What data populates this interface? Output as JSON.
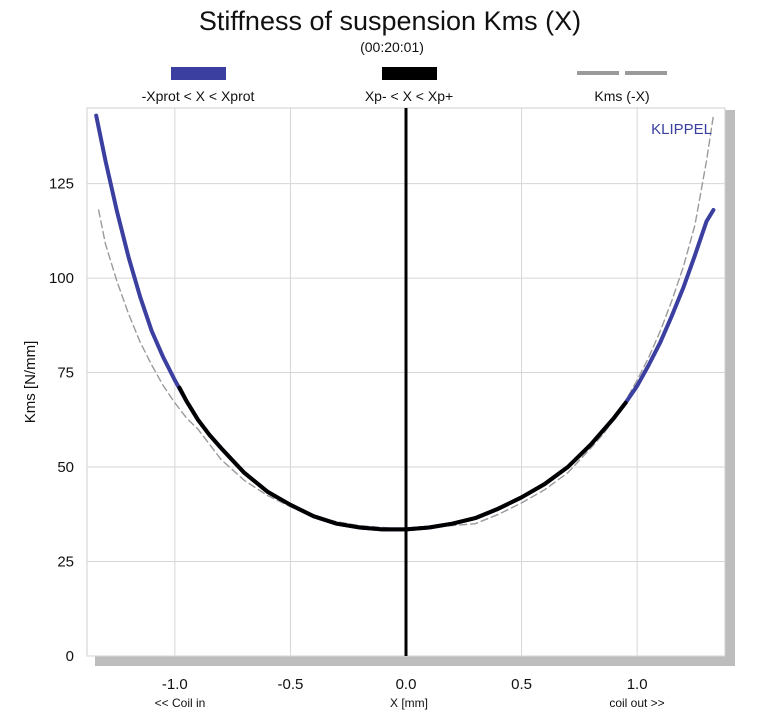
{
  "chart_data": {
    "type": "line",
    "title": "Stiffness of suspension Kms (X)",
    "subtitle": "(00:20:01)",
    "xlabel": "X [mm]",
    "ylabel": "Kms [N/mm]",
    "x_left_note": "<< Coil in",
    "x_right_note": "coil out >>",
    "brand": "KLIPPEL",
    "xlim": [
      -1.38,
      1.38
    ],
    "ylim": [
      0,
      145
    ],
    "xticks": [
      "-1.0",
      "-0.5",
      "0.0",
      "0.5",
      "1.0"
    ],
    "xtick_values": [
      -1.0,
      -0.5,
      0.0,
      0.5,
      1.0
    ],
    "yticks": [
      "0",
      "25",
      "50",
      "75",
      "100",
      "125"
    ],
    "ytick_values": [
      0,
      25,
      50,
      75,
      100,
      125
    ],
    "grid": true,
    "legend_position": "top",
    "vertical_marker_x": 0.0,
    "series": [
      {
        "name": "-Xprot < X < Xprot",
        "color": "#3b3fa0",
        "style": "solid",
        "x": [
          -1.34,
          -1.3,
          -1.25,
          -1.2,
          -1.15,
          -1.1,
          -1.05,
          -1.0,
          -0.95,
          -0.9,
          -0.85,
          -0.8,
          -0.7,
          -0.6,
          -0.5,
          -0.4,
          -0.3,
          -0.2,
          -0.1,
          0.0,
          0.1,
          0.2,
          0.3,
          0.4,
          0.5,
          0.6,
          0.7,
          0.8,
          0.9,
          0.95,
          1.0,
          1.05,
          1.1,
          1.15,
          1.2,
          1.25,
          1.3,
          1.33
        ],
        "y": [
          143,
          131,
          117.5,
          105.5,
          95,
          86,
          79,
          73,
          67.5,
          62.5,
          58.5,
          55,
          48.5,
          43.5,
          40,
          37,
          35,
          34,
          33.5,
          33.5,
          34,
          35,
          36.5,
          39,
          42,
          45.5,
          50,
          56,
          63,
          67,
          71.5,
          77,
          83,
          90,
          97.5,
          106,
          115,
          118
        ]
      },
      {
        "name": "Xp- < X < Xp+",
        "color": "#000000",
        "style": "solid",
        "x": [
          -0.98,
          -0.95,
          -0.9,
          -0.85,
          -0.8,
          -0.7,
          -0.6,
          -0.5,
          -0.4,
          -0.3,
          -0.2,
          -0.1,
          0.0,
          0.1,
          0.2,
          0.3,
          0.4,
          0.5,
          0.6,
          0.7,
          0.8,
          0.9,
          0.95
        ],
        "y": [
          71,
          67.5,
          62.5,
          58.5,
          55,
          48.5,
          43.5,
          40,
          37,
          35,
          34,
          33.5,
          33.5,
          34,
          35,
          36.5,
          39,
          42,
          45.5,
          50,
          56,
          63,
          67
        ]
      },
      {
        "name": "Kms (-X)",
        "color": "#9a9a9a",
        "style": "dashed",
        "x": [
          -1.33,
          -1.3,
          -1.25,
          -1.2,
          -1.15,
          -1.1,
          -1.05,
          -1.0,
          -0.95,
          -0.9,
          -0.8,
          -0.7,
          -0.6,
          -0.5,
          -0.4,
          -0.3,
          -0.2,
          -0.1,
          0.0,
          0.1,
          0.2,
          0.3,
          0.4,
          0.5,
          0.6,
          0.7,
          0.8,
          0.85,
          0.9,
          0.95,
          1.0,
          1.05,
          1.1,
          1.15,
          1.2,
          1.25,
          1.3,
          1.33
        ],
        "y": [
          118,
          109,
          99,
          90.5,
          83,
          77,
          71.5,
          67,
          63,
          60,
          52,
          46.5,
          42.5,
          39.5,
          37,
          35.5,
          34.5,
          34,
          33.5,
          34,
          34.5,
          35,
          37.5,
          40.5,
          44,
          48.5,
          55,
          58.5,
          62.5,
          67.5,
          73,
          79,
          86,
          94,
          103,
          114,
          131,
          143
        ]
      }
    ]
  }
}
